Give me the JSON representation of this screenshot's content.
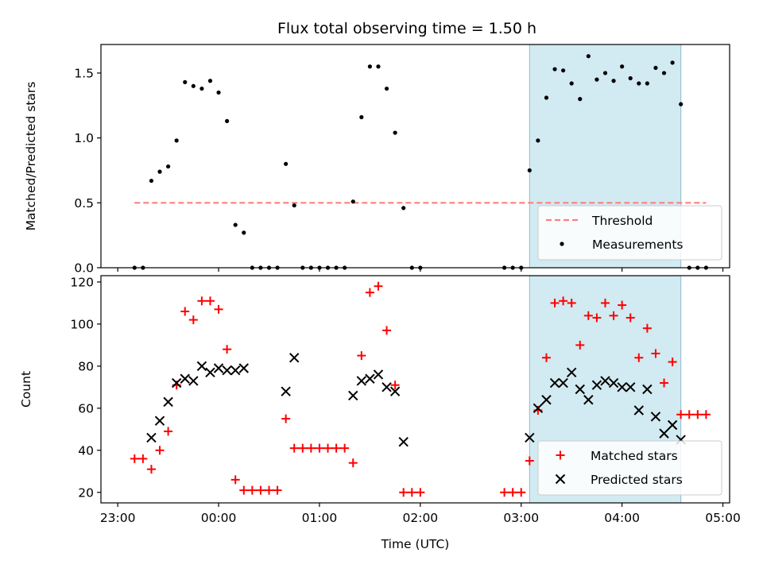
{
  "figure": {
    "title": "Flux total observing time = 1.50 h",
    "xlabel": "Time (UTC)"
  },
  "chart_data": [
    {
      "type": "scatter",
      "panel": "top",
      "ylabel": "Matched/Predicted stars",
      "xlim": [
        "22:50",
        "05:04"
      ],
      "ylim": [
        0,
        1.72
      ],
      "yticks": [
        0.0,
        0.5,
        1.0,
        1.5
      ],
      "ytick_labels": [
        "0.0",
        "0.5",
        "1.0",
        "1.5"
      ],
      "shaded_span": {
        "start": "03:05",
        "end": "04:35",
        "color": "#add8e6"
      },
      "threshold": {
        "name": "Threshold",
        "value": 0.5,
        "x_start": "23:10",
        "x_end": "04:50",
        "color": "#ff7f7f",
        "style": "dashed"
      },
      "series": [
        {
          "name": "Measurements",
          "color": "#000000",
          "marker": "dot",
          "points": [
            [
              "23:10",
              0
            ],
            [
              "23:15",
              0
            ],
            [
              "23:20",
              0.67
            ],
            [
              "23:25",
              0.74
            ],
            [
              "23:30",
              0.78
            ],
            [
              "23:35",
              0.98
            ],
            [
              "23:40",
              1.43
            ],
            [
              "23:45",
              1.4
            ],
            [
              "23:50",
              1.38
            ],
            [
              "23:55",
              1.44
            ],
            [
              "00:00",
              1.35
            ],
            [
              "00:05",
              1.13
            ],
            [
              "00:10",
              0.33
            ],
            [
              "00:15",
              0.27
            ],
            [
              "00:20",
              0
            ],
            [
              "00:25",
              0
            ],
            [
              "00:30",
              0
            ],
            [
              "00:35",
              0
            ],
            [
              "00:40",
              0.8
            ],
            [
              "00:45",
              0.48
            ],
            [
              "00:50",
              0
            ],
            [
              "00:55",
              0
            ],
            [
              "01:00",
              0
            ],
            [
              "01:05",
              0
            ],
            [
              "01:10",
              0
            ],
            [
              "01:15",
              0
            ],
            [
              "01:20",
              0.51
            ],
            [
              "01:25",
              1.16
            ],
            [
              "01:30",
              1.55
            ],
            [
              "01:35",
              1.55
            ],
            [
              "01:40",
              1.38
            ],
            [
              "01:45",
              1.04
            ],
            [
              "01:50",
              0.46
            ],
            [
              "01:55",
              0
            ],
            [
              "02:00",
              0
            ],
            [
              "02:50",
              0
            ],
            [
              "02:55",
              0
            ],
            [
              "03:00",
              0
            ],
            [
              "03:05",
              0.75
            ],
            [
              "03:10",
              0.98
            ],
            [
              "03:15",
              1.31
            ],
            [
              "03:20",
              1.53
            ],
            [
              "03:25",
              1.52
            ],
            [
              "03:30",
              1.42
            ],
            [
              "03:35",
              1.3
            ],
            [
              "03:40",
              1.63
            ],
            [
              "03:45",
              1.45
            ],
            [
              "03:50",
              1.5
            ],
            [
              "03:55",
              1.44
            ],
            [
              "04:00",
              1.55
            ],
            [
              "04:05",
              1.46
            ],
            [
              "04:10",
              1.42
            ],
            [
              "04:15",
              1.42
            ],
            [
              "04:20",
              1.54
            ],
            [
              "04:25",
              1.5
            ],
            [
              "04:30",
              1.58
            ],
            [
              "04:35",
              1.26
            ],
            [
              "04:40",
              0
            ],
            [
              "04:45",
              0
            ],
            [
              "04:50",
              0
            ]
          ]
        }
      ],
      "legend": {
        "placement": "lower-right",
        "entries": [
          "Threshold",
          "Measurements"
        ]
      }
    },
    {
      "type": "scatter",
      "panel": "bottom",
      "ylabel": "Count",
      "xlim": [
        "22:50",
        "05:04"
      ],
      "ylim": [
        15,
        123
      ],
      "yticks": [
        20,
        40,
        60,
        80,
        100,
        120
      ],
      "xticks": [
        "23:00",
        "00:00",
        "01:00",
        "02:00",
        "03:00",
        "04:00",
        "05:00"
      ],
      "shaded_span": {
        "start": "03:05",
        "end": "04:35",
        "color": "#add8e6"
      },
      "series": [
        {
          "name": "Matched stars",
          "color": "#ff0000",
          "marker": "plus",
          "points": [
            [
              "23:10",
              36
            ],
            [
              "23:15",
              36
            ],
            [
              "23:20",
              31
            ],
            [
              "23:25",
              40
            ],
            [
              "23:30",
              49
            ],
            [
              "23:35",
              71
            ],
            [
              "23:40",
              106
            ],
            [
              "23:45",
              102
            ],
            [
              "23:50",
              111
            ],
            [
              "23:55",
              111
            ],
            [
              "00:00",
              107
            ],
            [
              "00:05",
              88
            ],
            [
              "00:10",
              26
            ],
            [
              "00:15",
              21
            ],
            [
              "00:20",
              21
            ],
            [
              "00:25",
              21
            ],
            [
              "00:30",
              21
            ],
            [
              "00:35",
              21
            ],
            [
              "00:40",
              55
            ],
            [
              "00:45",
              41
            ],
            [
              "00:50",
              41
            ],
            [
              "00:55",
              41
            ],
            [
              "01:00",
              41
            ],
            [
              "01:05",
              41
            ],
            [
              "01:10",
              41
            ],
            [
              "01:15",
              41
            ],
            [
              "01:20",
              34
            ],
            [
              "01:25",
              85
            ],
            [
              "01:30",
              115
            ],
            [
              "01:35",
              118
            ],
            [
              "01:40",
              97
            ],
            [
              "01:45",
              71
            ],
            [
              "01:50",
              20
            ],
            [
              "01:55",
              20
            ],
            [
              "02:00",
              20
            ],
            [
              "02:50",
              20
            ],
            [
              "02:55",
              20
            ],
            [
              "03:00",
              20
            ],
            [
              "03:05",
              35
            ],
            [
              "03:10",
              59
            ],
            [
              "03:15",
              84
            ],
            [
              "03:20",
              110
            ],
            [
              "03:25",
              111
            ],
            [
              "03:30",
              110
            ],
            [
              "03:35",
              90
            ],
            [
              "03:40",
              104
            ],
            [
              "03:45",
              103
            ],
            [
              "03:50",
              110
            ],
            [
              "03:55",
              104
            ],
            [
              "04:00",
              109
            ],
            [
              "04:05",
              103
            ],
            [
              "04:10",
              84
            ],
            [
              "04:15",
              98
            ],
            [
              "04:20",
              86
            ],
            [
              "04:25",
              72
            ],
            [
              "04:30",
              82
            ],
            [
              "04:35",
              57
            ],
            [
              "04:40",
              57
            ],
            [
              "04:45",
              57
            ],
            [
              "04:50",
              57
            ]
          ]
        },
        {
          "name": "Predicted stars",
          "color": "#000000",
          "marker": "x",
          "points": [
            [
              "23:20",
              46
            ],
            [
              "23:25",
              54
            ],
            [
              "23:30",
              63
            ],
            [
              "23:35",
              72
            ],
            [
              "23:40",
              74
            ],
            [
              "23:45",
              73
            ],
            [
              "23:50",
              80
            ],
            [
              "23:55",
              77
            ],
            [
              "00:00",
              79
            ],
            [
              "00:05",
              78
            ],
            [
              "00:10",
              78
            ],
            [
              "00:15",
              79
            ],
            [
              "00:40",
              68
            ],
            [
              "00:45",
              84
            ],
            [
              "01:20",
              66
            ],
            [
              "01:25",
              73
            ],
            [
              "01:30",
              74
            ],
            [
              "01:35",
              76
            ],
            [
              "01:40",
              70
            ],
            [
              "01:45",
              68
            ],
            [
              "01:50",
              44
            ],
            [
              "03:05",
              46
            ],
            [
              "03:10",
              60
            ],
            [
              "03:15",
              64
            ],
            [
              "03:20",
              72
            ],
            [
              "03:25",
              72
            ],
            [
              "03:30",
              77
            ],
            [
              "03:35",
              69
            ],
            [
              "03:40",
              64
            ],
            [
              "03:45",
              71
            ],
            [
              "03:50",
              73
            ],
            [
              "03:55",
              72
            ],
            [
              "04:00",
              70
            ],
            [
              "04:05",
              70
            ],
            [
              "04:10",
              59
            ],
            [
              "04:15",
              69
            ],
            [
              "04:20",
              56
            ],
            [
              "04:25",
              48
            ],
            [
              "04:30",
              52
            ],
            [
              "04:35",
              45
            ]
          ]
        }
      ],
      "legend": {
        "placement": "lower-right",
        "entries": [
          "Matched stars",
          "Predicted stars"
        ]
      }
    }
  ]
}
